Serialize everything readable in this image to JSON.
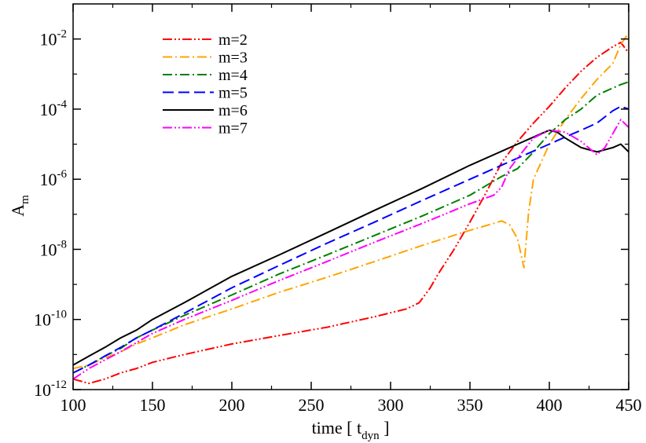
{
  "chart_data": {
    "type": "line",
    "xlabel": "time [ t",
    "xlabel_sub": "dyn",
    "xlabel_end": " ]",
    "ylabel": "A",
    "ylabel_sub": "m",
    "xlim": [
      100,
      450
    ],
    "ylim": [
      1e-12,
      0.1
    ],
    "yscale": "log",
    "x_ticks": [
      100,
      150,
      200,
      250,
      300,
      350,
      400,
      450
    ],
    "x_tick_labels": [
      "100",
      "150",
      "200",
      "250",
      "300",
      "350",
      "400",
      "450"
    ],
    "y_ticks": [
      -12,
      -10,
      -8,
      -6,
      -4,
      -2
    ],
    "y_tick_base": "10",
    "y_tick_exponents": [
      "-12",
      "-10",
      "-8",
      "-6",
      "-4",
      "-2"
    ],
    "legend_position": "top-left",
    "series": [
      {
        "name": "m=2",
        "color": "#ff0000",
        "dash": "12,3,2,3,2,3",
        "x": [
          100,
          110,
          120,
          130,
          140,
          150,
          170,
          200,
          230,
          260,
          290,
          310,
          318,
          325,
          330,
          340,
          350,
          360,
          370,
          380,
          390,
          400,
          410,
          420,
          430,
          440,
          445,
          450
        ],
        "y": [
          2e-12,
          1.5e-12,
          2e-12,
          3e-12,
          4e-12,
          6e-12,
          1e-11,
          2e-11,
          3.5e-11,
          6e-11,
          1.2e-10,
          2e-10,
          3e-10,
          8e-10,
          2e-09,
          1e-08,
          6e-08,
          4e-07,
          3e-06,
          1.2e-05,
          4e-05,
          0.00012,
          0.0004,
          0.0012,
          0.003,
          0.006,
          0.008,
          0.004
        ]
      },
      {
        "name": "m=3",
        "color": "#ffa500",
        "dash": "12,4,2,4",
        "x": [
          100,
          110,
          120,
          130,
          140,
          150,
          170,
          200,
          230,
          260,
          290,
          320,
          350,
          365,
          370,
          375,
          380,
          384,
          387,
          390,
          400,
          410,
          420,
          430,
          440,
          445,
          450
        ],
        "y": [
          4e-12,
          5e-12,
          8e-12,
          1.2e-11,
          2e-11,
          3e-11,
          7e-11,
          2e-10,
          6e-10,
          1.6e-09,
          4.5e-09,
          1.3e-08,
          3.5e-08,
          5.5e-08,
          6.5e-08,
          5e-08,
          2e-08,
          3e-09,
          1.2e-07,
          1e-06,
          1e-05,
          5e-05,
          0.0002,
          0.0007,
          0.002,
          0.007,
          0.015
        ]
      },
      {
        "name": "m=4",
        "color": "#008000",
        "dash": "12,4,2,4",
        "x": [
          100,
          110,
          120,
          130,
          140,
          150,
          170,
          200,
          230,
          260,
          290,
          320,
          350,
          370,
          380,
          390,
          400,
          410,
          420,
          430,
          440,
          445,
          450
        ],
        "y": [
          3e-12,
          5e-12,
          9e-12,
          1.5e-11,
          3e-11,
          5e-11,
          1.3e-10,
          5e-10,
          2e-09,
          7e-09,
          2.5e-08,
          9e-08,
          3.5e-07,
          1.2e-06,
          2e-06,
          6e-06,
          2e-05,
          5e-05,
          0.0001,
          0.00025,
          0.0004,
          0.0005,
          0.0006
        ]
      },
      {
        "name": "m=5",
        "color": "#0000ff",
        "dash": "14,6",
        "x": [
          100,
          110,
          120,
          130,
          140,
          150,
          170,
          200,
          230,
          260,
          290,
          320,
          350,
          380,
          400,
          410,
          420,
          430,
          440,
          445,
          450
        ],
        "y": [
          3e-12,
          5e-12,
          9e-12,
          1.6e-11,
          3e-11,
          5e-11,
          1.5e-10,
          8e-10,
          3.5e-09,
          1.5e-08,
          6e-08,
          2.5e-07,
          1e-06,
          4e-06,
          1e-05,
          1.6e-05,
          2.5e-05,
          4e-05,
          9e-05,
          0.00012,
          0.0001
        ]
      },
      {
        "name": "m=6",
        "color": "#000000",
        "dash": "",
        "x": [
          100,
          110,
          120,
          130,
          140,
          150,
          170,
          200,
          230,
          260,
          290,
          320,
          350,
          380,
          395,
          400,
          405,
          410,
          420,
          430,
          440,
          445,
          450
        ],
        "y": [
          5e-12,
          9e-12,
          1.6e-11,
          3e-11,
          5e-11,
          1e-10,
          3e-10,
          1.7e-09,
          7e-09,
          3e-08,
          1.3e-07,
          5.5e-07,
          2.5e-06,
          1e-05,
          2e-05,
          2.5e-05,
          2.2e-05,
          1.5e-05,
          8e-06,
          6e-06,
          8e-06,
          1e-05,
          6e-06
        ]
      },
      {
        "name": "m=7",
        "color": "#ff00ff",
        "dash": "12,3,2,3,2,3",
        "x": [
          100,
          110,
          120,
          130,
          140,
          150,
          170,
          200,
          230,
          260,
          290,
          320,
          350,
          365,
          370,
          375,
          380,
          390,
          400,
          410,
          420,
          430,
          435,
          440,
          445,
          450
        ],
        "y": [
          2e-12,
          4e-12,
          7e-12,
          1.2e-11,
          2.2e-11,
          4e-11,
          1e-10,
          3.5e-10,
          1.3e-09,
          4.5e-09,
          1.6e-08,
          5.5e-08,
          2e-07,
          3.5e-07,
          6e-07,
          2e-06,
          4e-06,
          1.5e-05,
          2.5e-05,
          2.2e-05,
          1.2e-05,
          5e-06,
          8e-06,
          2e-05,
          5e-05,
          3e-05
        ]
      }
    ]
  }
}
